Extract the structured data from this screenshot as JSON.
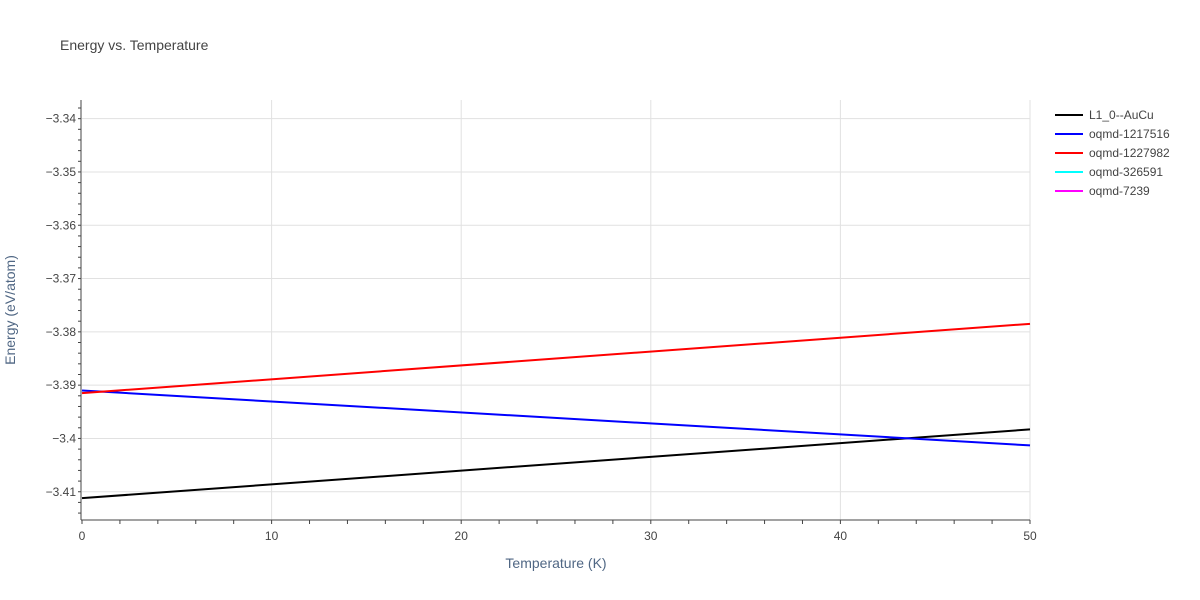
{
  "chart_data": {
    "type": "line",
    "title": "Energy vs. Temperature",
    "xlabel": "Temperature (K)",
    "ylabel": "Energy (eV/atom)",
    "xlim": [
      0,
      50
    ],
    "ylim": [
      -3.4153,
      -3.3365
    ],
    "x_ticks": [
      0,
      10,
      20,
      30,
      40,
      50
    ],
    "x_tick_labels": [
      "0",
      "10",
      "20",
      "30",
      "40",
      "50"
    ],
    "y_ticks": [
      -3.34,
      -3.35,
      -3.36,
      -3.37,
      -3.38,
      -3.39,
      -3.4,
      -3.41
    ],
    "y_tick_labels": [
      "−3.34",
      "−3.35",
      "−3.36",
      "−3.37",
      "−3.38",
      "−3.39",
      "−3.4",
      "−3.41"
    ],
    "grid": true,
    "legend_position": "top-right",
    "series": [
      {
        "name": "L1_0--AuCu",
        "color": "#000000",
        "x": [
          0,
          50
        ],
        "y": [
          -3.4112,
          -3.3983
        ]
      },
      {
        "name": "oqmd-1217516",
        "color": "#0000ff",
        "x": [
          0,
          50
        ],
        "y": [
          -3.391,
          -3.4013
        ]
      },
      {
        "name": "oqmd-1227982",
        "color": "#ff0000",
        "x": [
          0,
          50
        ],
        "y": [
          -3.3915,
          -3.3785
        ]
      },
      {
        "name": "oqmd-326591",
        "color": "#00ffff",
        "x": [],
        "y": []
      },
      {
        "name": "oqmd-7239",
        "color": "#ff00ff",
        "x": [],
        "y": []
      }
    ]
  }
}
